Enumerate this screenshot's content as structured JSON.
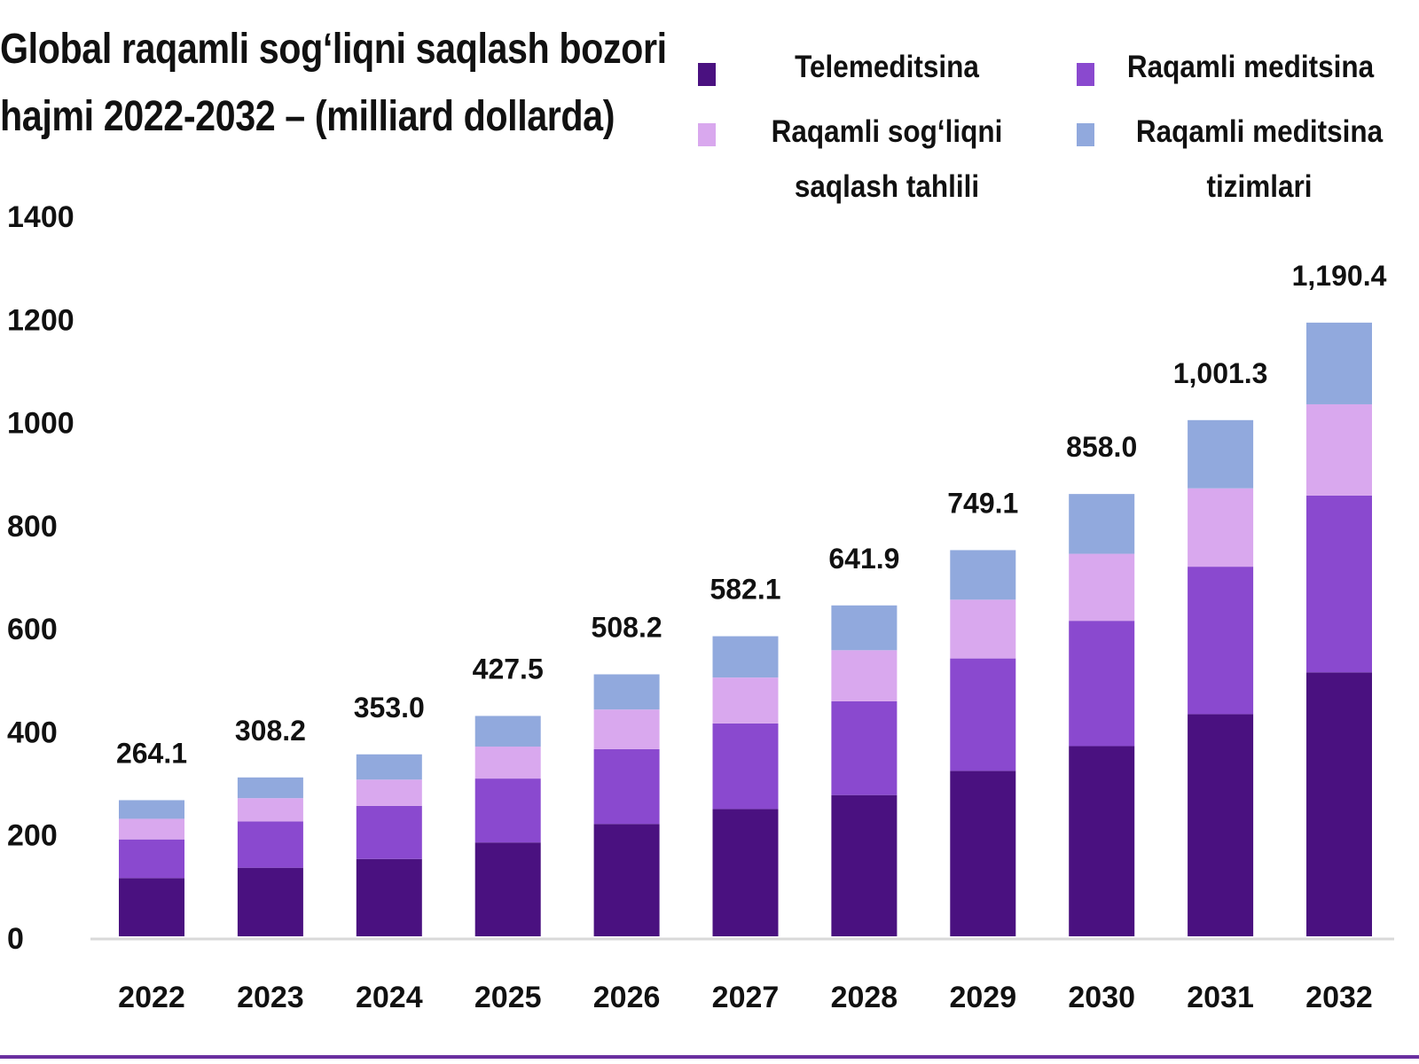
{
  "chart_data": {
    "type": "bar",
    "stacked": true,
    "title_lines": [
      "Global raqamli sog‘liqni saqlash bozori",
      "hajmi 2022-2032 – (milliard dollarda)"
    ],
    "categories": [
      "2022",
      "2023",
      "2024",
      "2025",
      "2026",
      "2027",
      "2028",
      "2029",
      "2030",
      "2031",
      "2032"
    ],
    "series": [
      {
        "name": "Telemeditsina",
        "color": "#4a1180",
        "values": [
          113,
          133,
          150,
          182,
          218,
          247,
          274,
          321,
          369,
          431,
          512
        ]
      },
      {
        "name": "Raqamli meditsina",
        "color": "#8a49cf",
        "values": [
          75,
          90,
          103,
          124,
          145,
          166,
          182,
          218,
          243,
          286,
          343
        ]
      },
      {
        "name": "Raqamli sog‘liqni saqlash tahlili",
        "color": "#d9a8ee",
        "values": [
          40,
          45,
          51,
          62,
          77,
          89,
          99,
          114,
          130,
          152,
          177
        ]
      },
      {
        "name": "Raqamli meditsina tizimlari",
        "color": "#91a9dd",
        "values": [
          36.1,
          40.2,
          49.0,
          59.5,
          68.2,
          80.1,
          86.9,
          96.1,
          116.0,
          132.3,
          158.4
        ]
      }
    ],
    "totals": [
      "264.1",
      "308.2",
      "353.0",
      "427.5",
      "508.2",
      "582.1",
      "641.9",
      "749.1",
      "858.0",
      "1,001.3",
      "1,190.4"
    ],
    "ylim": [
      0,
      1400
    ],
    "yticks": [
      "0",
      "200",
      "400",
      "600",
      "800",
      "1000",
      "1200",
      "1400"
    ],
    "grid": false,
    "legend_position": "top-right"
  },
  "legend": [
    {
      "label_lines": [
        "Telemeditsina"
      ],
      "color": "#4a1180"
    },
    {
      "label_lines": [
        "Raqamli meditsina"
      ],
      "color": "#8a49cf"
    },
    {
      "label_lines": [
        "Raqamli sog‘liqni",
        "saqlash  tahlili"
      ],
      "color": "#d9a8ee"
    },
    {
      "label_lines": [
        "Raqamli  meditsina",
        "tizimlari"
      ],
      "color": "#91a9dd"
    }
  ],
  "colors": {
    "axis": "#d9d9d9",
    "rule": "#6a2fa0",
    "text": "#111111"
  }
}
